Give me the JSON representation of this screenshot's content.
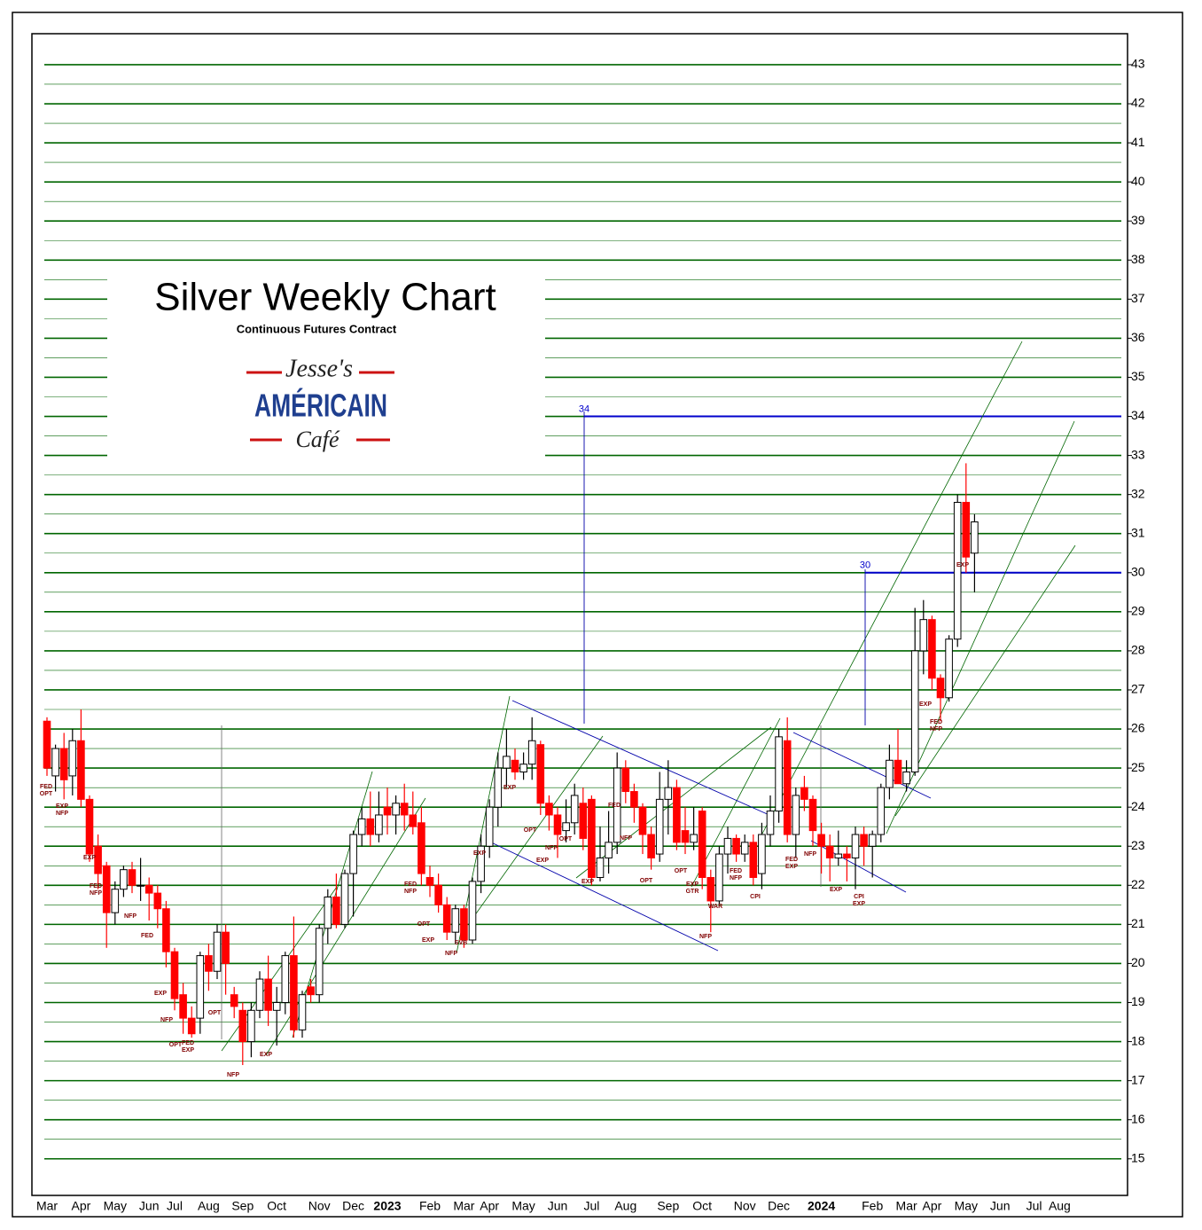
{
  "chart_data": {
    "type": "candlestick",
    "title": "Silver Weekly Chart",
    "subtitle": "Continuous Futures Contract",
    "logo": [
      "Jesse's",
      "AMÉRICAIN",
      "Café"
    ],
    "ylim": [
      14.2,
      43.8
    ],
    "yticks": [
      15,
      16,
      17,
      18,
      19,
      20,
      21,
      22,
      23,
      24,
      25,
      26,
      27,
      28,
      29,
      30,
      31,
      32,
      33,
      34,
      35,
      36,
      37,
      38,
      39,
      40,
      41,
      42,
      43
    ],
    "grid": true,
    "up_color": "#ffffff",
    "down_color": "#ff0000",
    "grid_color": "#006600",
    "hlines": [
      34,
      30
    ],
    "hline_color": "#0000cc",
    "categories": [
      "Mar",
      null,
      null,
      null,
      "Apr",
      null,
      null,
      null,
      "May",
      null,
      null,
      null,
      "Jun",
      null,
      null,
      "Jul",
      null,
      null,
      null,
      "Aug",
      null,
      null,
      null,
      "Sep",
      null,
      null,
      null,
      "Oct",
      null,
      null,
      null,
      null,
      "Nov",
      null,
      null,
      null,
      "Dec",
      null,
      null,
      null,
      "2023",
      null,
      null,
      null,
      null,
      "Feb",
      null,
      null,
      null,
      "Mar",
      null,
      null,
      "Apr",
      null,
      null,
      null,
      "May",
      null,
      null,
      null,
      "Jun",
      null,
      null,
      null,
      "Jul",
      null,
      null,
      null,
      "Aug",
      null,
      null,
      null,
      null,
      "Sep",
      null,
      null,
      null,
      "Oct",
      null,
      null,
      null,
      null,
      "Nov",
      null,
      null,
      null,
      "Dec",
      null,
      null,
      null,
      null,
      "2024",
      null,
      null,
      null,
      null,
      null,
      "Feb",
      null,
      null,
      null,
      "Mar",
      null,
      null,
      "Apr",
      null,
      null,
      null,
      "May",
      null,
      null,
      null,
      "Jun",
      null,
      null,
      null,
      "Jul",
      null,
      null,
      "Aug",
      null,
      null
    ],
    "candles": [
      {
        "o": 26.2,
        "h": 26.3,
        "l": 24.8,
        "c": 25.0
      },
      {
        "o": 24.8,
        "h": 25.6,
        "l": 24.4,
        "c": 25.5
      },
      {
        "o": 25.5,
        "h": 25.9,
        "l": 24.2,
        "c": 24.7
      },
      {
        "o": 24.8,
        "h": 26.0,
        "l": 24.3,
        "c": 25.7
      },
      {
        "o": 25.7,
        "h": 26.5,
        "l": 24.0,
        "c": 24.2
      },
      {
        "o": 24.2,
        "h": 24.3,
        "l": 22.6,
        "c": 22.8
      },
      {
        "o": 23.0,
        "h": 23.3,
        "l": 21.9,
        "c": 22.3
      },
      {
        "o": 22.5,
        "h": 22.6,
        "l": 20.4,
        "c": 21.3
      },
      {
        "o": 21.3,
        "h": 22.1,
        "l": 21.0,
        "c": 21.9
      },
      {
        "o": 21.9,
        "h": 22.5,
        "l": 21.7,
        "c": 22.4
      },
      {
        "o": 22.4,
        "h": 22.6,
        "l": 21.8,
        "c": 22.0
      },
      {
        "o": 22.0,
        "h": 22.7,
        "l": 21.6,
        "c": 22.0
      },
      {
        "o": 22.0,
        "h": 22.2,
        "l": 21.1,
        "c": 21.8
      },
      {
        "o": 21.8,
        "h": 22.0,
        "l": 20.9,
        "c": 21.4
      },
      {
        "o": 21.4,
        "h": 21.6,
        "l": 19.9,
        "c": 20.3
      },
      {
        "o": 20.3,
        "h": 20.4,
        "l": 18.8,
        "c": 19.1
      },
      {
        "o": 19.2,
        "h": 19.5,
        "l": 18.2,
        "c": 18.6
      },
      {
        "o": 18.6,
        "h": 18.9,
        "l": 18.1,
        "c": 18.2
      },
      {
        "o": 18.6,
        "h": 20.3,
        "l": 18.2,
        "c": 20.2
      },
      {
        "o": 20.2,
        "h": 20.5,
        "l": 19.3,
        "c": 19.8
      },
      {
        "o": 19.8,
        "h": 21.0,
        "l": 19.6,
        "c": 20.8
      },
      {
        "o": 20.8,
        "h": 21.0,
        "l": 19.2,
        "c": 20.0
      },
      {
        "o": 19.2,
        "h": 19.4,
        "l": 18.6,
        "c": 18.9
      },
      {
        "o": 18.8,
        "h": 19.0,
        "l": 17.4,
        "c": 18.0
      },
      {
        "o": 18.0,
        "h": 19.0,
        "l": 17.6,
        "c": 18.8
      },
      {
        "o": 18.8,
        "h": 19.8,
        "l": 18.6,
        "c": 19.6
      },
      {
        "o": 19.6,
        "h": 20.2,
        "l": 18.4,
        "c": 18.8
      },
      {
        "o": 18.8,
        "h": 19.4,
        "l": 17.9,
        "c": 19.0
      },
      {
        "o": 19.0,
        "h": 20.3,
        "l": 18.7,
        "c": 20.2
      },
      {
        "o": 20.2,
        "h": 21.2,
        "l": 18.1,
        "c": 18.3
      },
      {
        "o": 18.3,
        "h": 19.3,
        "l": 18.1,
        "c": 19.2
      },
      {
        "o": 19.4,
        "h": 19.6,
        "l": 19.0,
        "c": 19.2
      },
      {
        "o": 19.2,
        "h": 21.0,
        "l": 19.0,
        "c": 20.9
      },
      {
        "o": 20.9,
        "h": 21.9,
        "l": 20.5,
        "c": 21.7
      },
      {
        "o": 21.7,
        "h": 22.3,
        "l": 20.9,
        "c": 21.0
      },
      {
        "o": 21.0,
        "h": 22.4,
        "l": 20.9,
        "c": 22.3
      },
      {
        "o": 22.3,
        "h": 23.4,
        "l": 21.2,
        "c": 23.3
      },
      {
        "o": 23.3,
        "h": 24.0,
        "l": 23.0,
        "c": 23.7
      },
      {
        "o": 23.7,
        "h": 24.4,
        "l": 23.0,
        "c": 23.3
      },
      {
        "o": 23.3,
        "h": 24.4,
        "l": 23.1,
        "c": 23.8
      },
      {
        "o": 24.0,
        "h": 24.5,
        "l": 23.3,
        "c": 23.8
      },
      {
        "o": 23.8,
        "h": 24.3,
        "l": 23.3,
        "c": 24.1
      },
      {
        "o": 24.1,
        "h": 24.6,
        "l": 23.4,
        "c": 23.8
      },
      {
        "o": 23.8,
        "h": 24.4,
        "l": 23.3,
        "c": 23.5
      },
      {
        "o": 23.6,
        "h": 24.0,
        "l": 22.0,
        "c": 22.3
      },
      {
        "o": 22.2,
        "h": 22.5,
        "l": 21.7,
        "c": 22.0
      },
      {
        "o": 22.0,
        "h": 22.3,
        "l": 21.3,
        "c": 21.5
      },
      {
        "o": 21.5,
        "h": 21.7,
        "l": 20.6,
        "c": 20.8
      },
      {
        "o": 20.8,
        "h": 21.5,
        "l": 20.5,
        "c": 21.4
      },
      {
        "o": 21.4,
        "h": 21.5,
        "l": 20.4,
        "c": 20.6
      },
      {
        "o": 20.6,
        "h": 22.2,
        "l": 20.5,
        "c": 22.1
      },
      {
        "o": 22.1,
        "h": 23.3,
        "l": 21.8,
        "c": 23.0
      },
      {
        "o": 23.0,
        "h": 24.2,
        "l": 22.7,
        "c": 24.0
      },
      {
        "o": 24.0,
        "h": 25.4,
        "l": 23.5,
        "c": 25.0
      },
      {
        "o": 25.0,
        "h": 26.0,
        "l": 24.5,
        "c": 25.3
      },
      {
        "o": 25.2,
        "h": 25.5,
        "l": 24.7,
        "c": 24.9
      },
      {
        "o": 24.9,
        "h": 25.4,
        "l": 24.7,
        "c": 25.1
      },
      {
        "o": 25.1,
        "h": 26.3,
        "l": 24.7,
        "c": 25.7
      },
      {
        "o": 25.6,
        "h": 25.7,
        "l": 23.8,
        "c": 24.1
      },
      {
        "o": 24.1,
        "h": 24.3,
        "l": 23.4,
        "c": 23.8
      },
      {
        "o": 23.8,
        "h": 24.0,
        "l": 22.7,
        "c": 23.3
      },
      {
        "o": 23.4,
        "h": 24.2,
        "l": 23.1,
        "c": 23.6
      },
      {
        "o": 23.6,
        "h": 24.6,
        "l": 23.3,
        "c": 24.3
      },
      {
        "o": 24.1,
        "h": 24.5,
        "l": 22.9,
        "c": 23.2
      },
      {
        "o": 24.2,
        "h": 24.3,
        "l": 22.0,
        "c": 22.2
      },
      {
        "o": 22.2,
        "h": 23.5,
        "l": 22.1,
        "c": 22.7
      },
      {
        "o": 22.7,
        "h": 23.9,
        "l": 22.3,
        "c": 23.1
      },
      {
        "o": 23.1,
        "h": 25.4,
        "l": 22.8,
        "c": 25.0
      },
      {
        "o": 25.0,
        "h": 25.2,
        "l": 24.1,
        "c": 24.4
      },
      {
        "o": 24.4,
        "h": 24.6,
        "l": 23.6,
        "c": 24.0
      },
      {
        "o": 24.0,
        "h": 24.1,
        "l": 22.8,
        "c": 23.3
      },
      {
        "o": 23.3,
        "h": 23.5,
        "l": 22.4,
        "c": 22.7
      },
      {
        "o": 22.8,
        "h": 24.9,
        "l": 22.6,
        "c": 24.2
      },
      {
        "o": 24.2,
        "h": 25.2,
        "l": 23.3,
        "c": 24.5
      },
      {
        "o": 24.5,
        "h": 24.7,
        "l": 22.9,
        "c": 23.1
      },
      {
        "o": 23.4,
        "h": 24.0,
        "l": 22.8,
        "c": 23.1
      },
      {
        "o": 23.1,
        "h": 24.0,
        "l": 22.9,
        "c": 23.3
      },
      {
        "o": 23.9,
        "h": 24.0,
        "l": 21.9,
        "c": 22.2
      },
      {
        "o": 22.2,
        "h": 22.4,
        "l": 20.8,
        "c": 21.6
      },
      {
        "o": 21.6,
        "h": 23.0,
        "l": 21.5,
        "c": 22.8
      },
      {
        "o": 22.8,
        "h": 23.5,
        "l": 22.3,
        "c": 23.2
      },
      {
        "o": 23.2,
        "h": 23.3,
        "l": 22.6,
        "c": 22.8
      },
      {
        "o": 22.8,
        "h": 23.3,
        "l": 22.6,
        "c": 23.1
      },
      {
        "o": 23.1,
        "h": 23.3,
        "l": 22.0,
        "c": 22.2
      },
      {
        "o": 22.3,
        "h": 23.6,
        "l": 21.9,
        "c": 23.3
      },
      {
        "o": 23.3,
        "h": 24.3,
        "l": 23.0,
        "c": 23.9
      },
      {
        "o": 23.9,
        "h": 26.0,
        "l": 23.6,
        "c": 25.8
      },
      {
        "o": 25.7,
        "h": 26.3,
        "l": 23.1,
        "c": 23.3
      },
      {
        "o": 23.3,
        "h": 24.5,
        "l": 22.7,
        "c": 24.3
      },
      {
        "o": 24.5,
        "h": 24.8,
        "l": 23.9,
        "c": 24.2
      },
      {
        "o": 24.2,
        "h": 24.3,
        "l": 23.0,
        "c": 23.4
      },
      {
        "o": 23.3,
        "h": 23.6,
        "l": 22.3,
        "c": 23.0
      },
      {
        "o": 23.0,
        "h": 23.3,
        "l": 22.1,
        "c": 22.7
      },
      {
        "o": 22.7,
        "h": 23.4,
        "l": 22.5,
        "c": 22.8
      },
      {
        "o": 22.8,
        "h": 23.0,
        "l": 22.1,
        "c": 22.7
      },
      {
        "o": 22.7,
        "h": 23.5,
        "l": 21.9,
        "c": 23.3
      },
      {
        "o": 23.3,
        "h": 23.5,
        "l": 22.5,
        "c": 23.0
      },
      {
        "o": 23.0,
        "h": 23.4,
        "l": 22.2,
        "c": 23.3
      },
      {
        "o": 23.3,
        "h": 24.6,
        "l": 23.1,
        "c": 24.5
      },
      {
        "o": 24.5,
        "h": 25.6,
        "l": 24.2,
        "c": 25.2
      },
      {
        "o": 25.2,
        "h": 26.0,
        "l": 24.6,
        "c": 24.6
      },
      {
        "o": 24.6,
        "h": 25.2,
        "l": 24.4,
        "c": 24.9
      },
      {
        "o": 24.9,
        "h": 29.1,
        "l": 24.8,
        "c": 28.0
      },
      {
        "o": 28.0,
        "h": 29.3,
        "l": 27.4,
        "c": 28.8
      },
      {
        "o": 28.8,
        "h": 28.9,
        "l": 27.0,
        "c": 27.3
      },
      {
        "o": 27.3,
        "h": 27.4,
        "l": 26.2,
        "c": 26.8
      },
      {
        "o": 26.8,
        "h": 28.4,
        "l": 26.7,
        "c": 28.3
      },
      {
        "o": 28.3,
        "h": 32.0,
        "l": 28.1,
        "c": 31.8
      },
      {
        "o": 31.8,
        "h": 32.8,
        "l": 30.0,
        "c": 30.4
      },
      {
        "o": 30.5,
        "h": 31.5,
        "l": 29.5,
        "c": 31.3
      },
      null,
      null,
      null,
      null,
      null,
      null,
      null,
      null,
      null,
      null,
      null,
      null
    ],
    "annotations": [
      [
        "FED",
        "OPT"
      ],
      [
        "EXP",
        "NFP"
      ],
      [
        "EXP"
      ],
      [
        "FED",
        "NFP"
      ],
      [
        "NFP"
      ],
      [
        "FED"
      ],
      [
        "EXP"
      ],
      [
        "NFP"
      ],
      [
        "OPT"
      ],
      [
        "FED",
        "EXP"
      ],
      [
        "OPT"
      ],
      [
        "NFP"
      ],
      [
        "EXP"
      ],
      [
        "FED",
        "NFP"
      ],
      [
        "OPT"
      ],
      [
        "EXP"
      ],
      [
        "NFP"
      ],
      [
        "SVB"
      ],
      [
        "EXP"
      ],
      [
        "EXP"
      ],
      [
        "OPT"
      ],
      [
        "EXP"
      ],
      [
        "NFP"
      ],
      [
        "OPT"
      ],
      [
        "EXP"
      ],
      [
        "FED"
      ],
      [
        "NFP"
      ],
      [
        "OPT"
      ],
      [
        "OPT"
      ],
      [
        "EXP",
        "GTR"
      ],
      [
        "WAR"
      ],
      [
        "NFP"
      ],
      [
        "FED",
        "NFP"
      ],
      [
        "CPI"
      ],
      [
        "FED",
        "EXP"
      ],
      [
        "NFP"
      ],
      [
        "EXP"
      ],
      [
        "CPI",
        "EXP"
      ],
      [
        "EXP"
      ],
      [
        "FED",
        "NFP"
      ],
      [
        "EXP"
      ]
    ]
  }
}
